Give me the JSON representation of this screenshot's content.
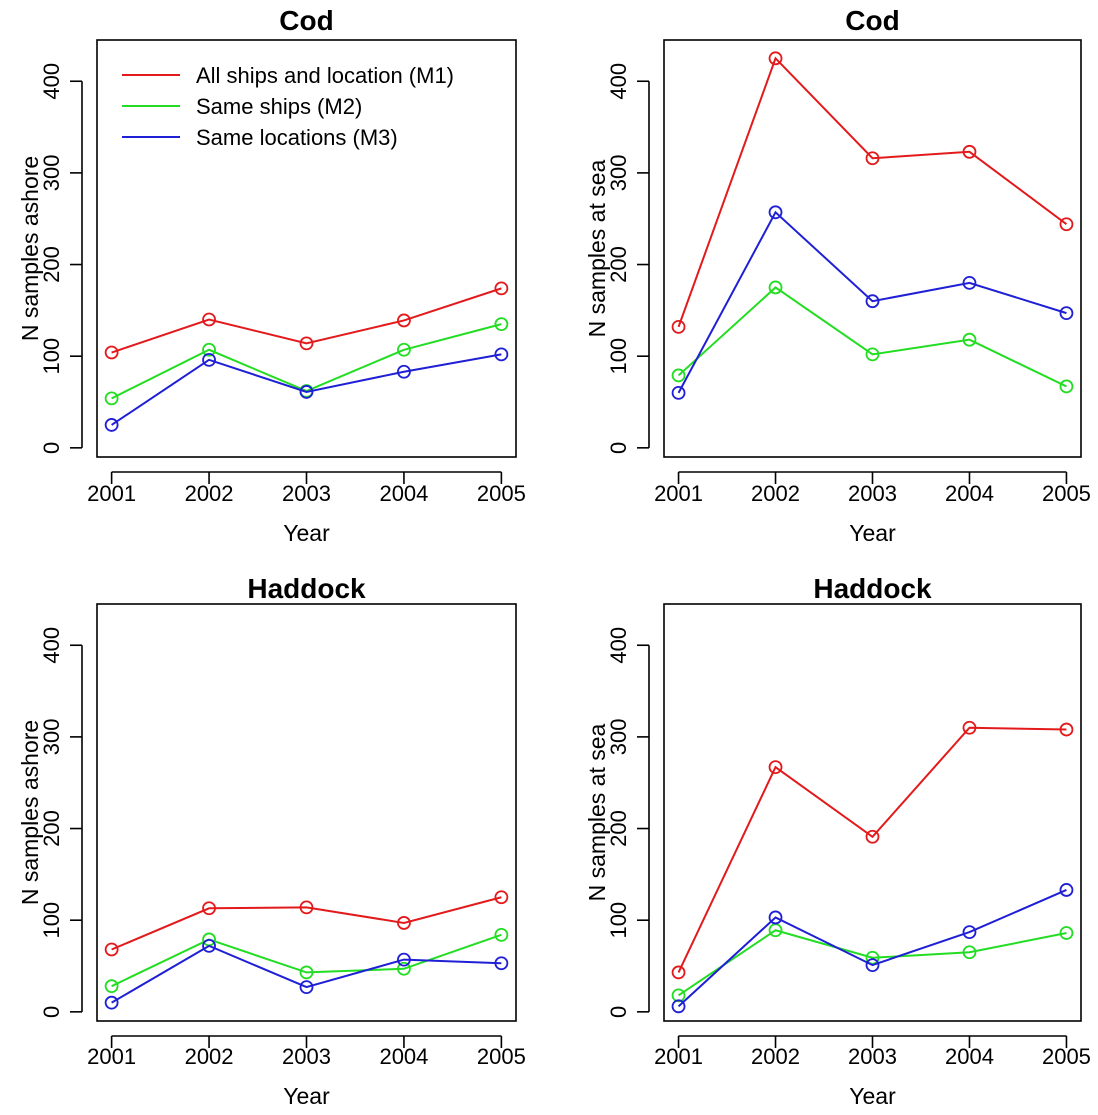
{
  "chart_data": [
    {
      "type": "line",
      "title": "Cod",
      "xlabel": "Year",
      "ylabel": "N samples ashore",
      "x": [
        2001,
        2002,
        2003,
        2004,
        2005
      ],
      "xlim": [
        2000.85,
        2005.15
      ],
      "ylim": [
        -10,
        445
      ],
      "yticks": [
        0,
        100,
        200,
        300,
        400
      ],
      "series": [
        {
          "name": "All ships and location (M1)",
          "color": "#e31a1c",
          "values": [
            104,
            140,
            114,
            139,
            174
          ]
        },
        {
          "name": "Same ships (M2)",
          "color": "#22dd22",
          "values": [
            54,
            107,
            62,
            107,
            135
          ]
        },
        {
          "name": "Same locations (M3)",
          "color": "#1f1fd6",
          "values": [
            25,
            96,
            61,
            83,
            102
          ]
        }
      ],
      "legend": "top-left"
    },
    {
      "type": "line",
      "title": "Cod",
      "xlabel": "Year",
      "ylabel": "N samples at sea",
      "x": [
        2001,
        2002,
        2003,
        2004,
        2005
      ],
      "xlim": [
        2000.85,
        2005.15
      ],
      "ylim": [
        -10,
        445
      ],
      "yticks": [
        0,
        100,
        200,
        300,
        400
      ],
      "series": [
        {
          "name": "All ships and location (M1)",
          "color": "#e31a1c",
          "values": [
            132,
            425,
            316,
            323,
            244
          ]
        },
        {
          "name": "Same ships (M2)",
          "color": "#22dd22",
          "values": [
            79,
            175,
            102,
            118,
            67
          ]
        },
        {
          "name": "Same locations (M3)",
          "color": "#1f1fd6",
          "values": [
            60,
            257,
            160,
            180,
            147
          ]
        }
      ]
    },
    {
      "type": "line",
      "title": "Haddock",
      "xlabel": "Year",
      "ylabel": "N samples ashore",
      "x": [
        2001,
        2002,
        2003,
        2004,
        2005
      ],
      "xlim": [
        2000.85,
        2005.15
      ],
      "ylim": [
        -10,
        445
      ],
      "yticks": [
        0,
        100,
        200,
        300,
        400
      ],
      "series": [
        {
          "name": "All ships and location (M1)",
          "color": "#e31a1c",
          "values": [
            68,
            113,
            114,
            97,
            125
          ]
        },
        {
          "name": "Same ships (M2)",
          "color": "#22dd22",
          "values": [
            28,
            79,
            43,
            47,
            84
          ]
        },
        {
          "name": "Same locations (M3)",
          "color": "#1f1fd6",
          "values": [
            10,
            72,
            27,
            57,
            53
          ]
        }
      ]
    },
    {
      "type": "line",
      "title": "Haddock",
      "xlabel": "Year",
      "ylabel": "N samples at sea",
      "x": [
        2001,
        2002,
        2003,
        2004,
        2005
      ],
      "xlim": [
        2000.85,
        2005.15
      ],
      "ylim": [
        -10,
        445
      ],
      "yticks": [
        0,
        100,
        200,
        300,
        400
      ],
      "series": [
        {
          "name": "All ships and location (M1)",
          "color": "#e31a1c",
          "values": [
            43,
            267,
            191,
            310,
            308
          ]
        },
        {
          "name": "Same ships (M2)",
          "color": "#22dd22",
          "values": [
            18,
            89,
            59,
            65,
            86
          ]
        },
        {
          "name": "Same locations (M3)",
          "color": "#1f1fd6",
          "values": [
            6,
            103,
            51,
            87,
            133
          ]
        }
      ]
    }
  ]
}
